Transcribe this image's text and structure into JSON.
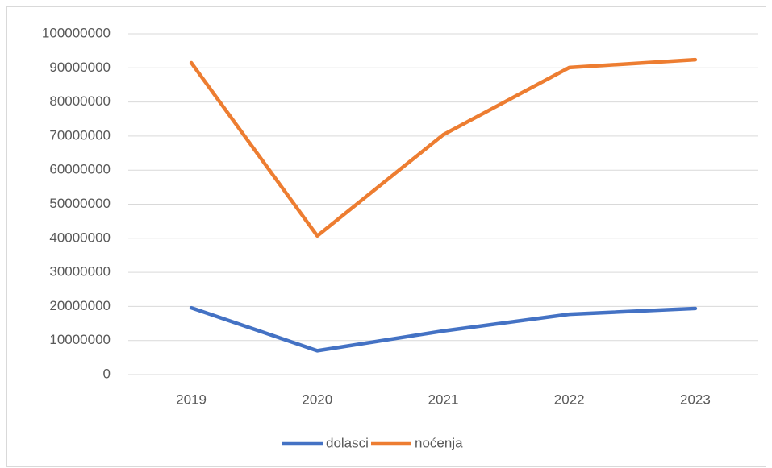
{
  "chart_data": {
    "type": "line",
    "categories": [
      "2019",
      "2020",
      "2021",
      "2022",
      "2023"
    ],
    "series": [
      {
        "name": "dolasci",
        "color": "#4472c4",
        "values": [
          19600000,
          7000000,
          12800000,
          17700000,
          19400000
        ]
      },
      {
        "name": "noćenja",
        "color": "#ed7d31",
        "values": [
          91500000,
          40700000,
          70400000,
          90100000,
          92400000
        ]
      }
    ],
    "ylim": [
      0,
      100000000
    ],
    "yticks": [
      0,
      10000000,
      20000000,
      30000000,
      40000000,
      50000000,
      60000000,
      70000000,
      80000000,
      90000000,
      100000000
    ],
    "grid": true,
    "legend": "bottom"
  }
}
